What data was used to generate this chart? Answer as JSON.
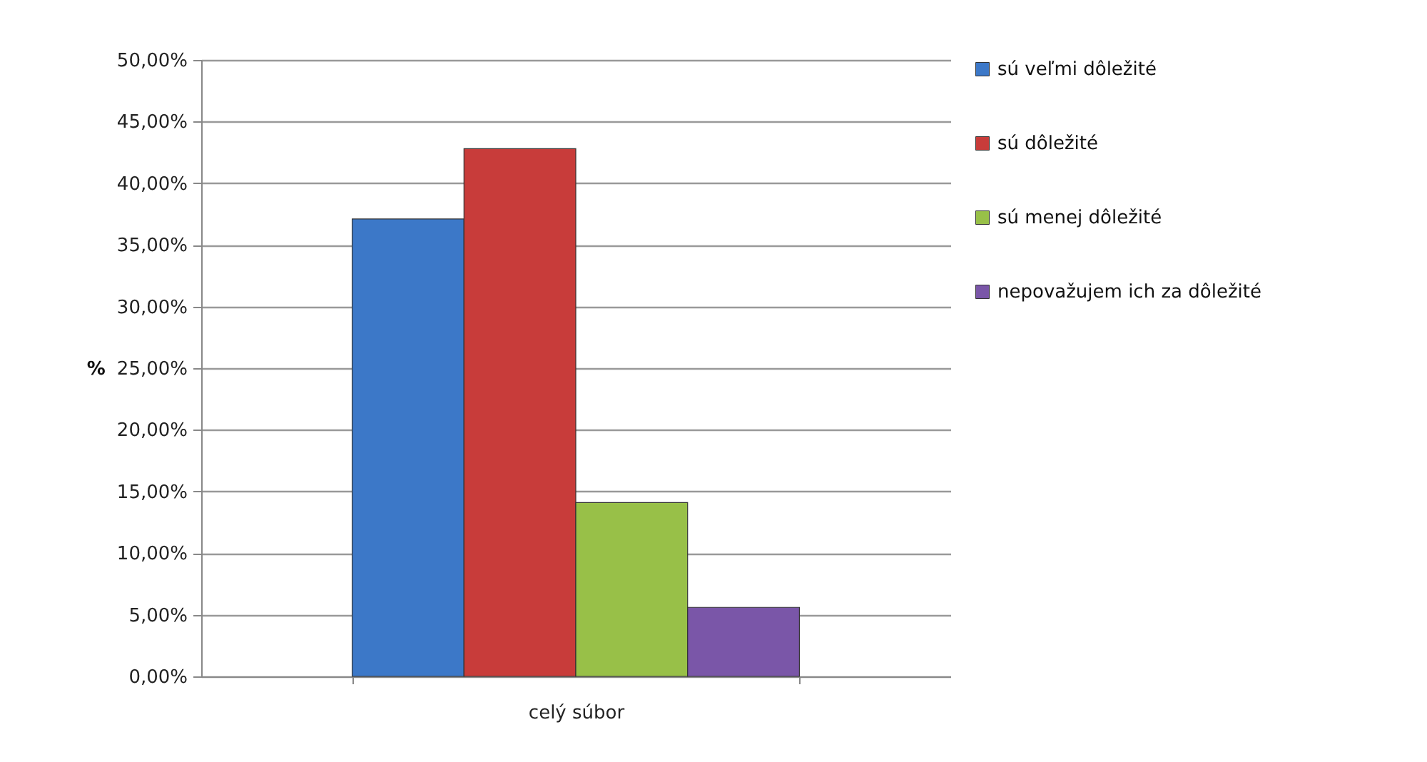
{
  "chart_data": {
    "type": "bar",
    "ylabel": "%",
    "categories": [
      "celý súbor"
    ],
    "series": [
      {
        "name": "sú veľmi dôležité",
        "color": "#3c78c8",
        "values": [
          37.1
        ]
      },
      {
        "name": "sú dôležité",
        "color": "#c83c3a",
        "values": [
          42.8
        ]
      },
      {
        "name": "sú menej dôležité",
        "color": "#98c048",
        "values": [
          14.1
        ]
      },
      {
        "name": "nepovažujem ich za dôležité",
        "color": "#7a56a8",
        "values": [
          5.6
        ]
      }
    ],
    "ylim": [
      0,
      50
    ],
    "yticks": [
      {
        "value": 0,
        "label": "0,00%"
      },
      {
        "value": 5,
        "label": "5,00%"
      },
      {
        "value": 10,
        "label": "10,00%"
      },
      {
        "value": 15,
        "label": "15,00%"
      },
      {
        "value": 20,
        "label": "20,00%"
      },
      {
        "value": 25,
        "label": "25,00%"
      },
      {
        "value": 30,
        "label": "30,00%"
      },
      {
        "value": 35,
        "label": "35,00%"
      },
      {
        "value": 40,
        "label": "40,00%"
      },
      {
        "value": 45,
        "label": "45,00%"
      },
      {
        "value": 50,
        "label": "50,00%"
      }
    ],
    "grid": "y",
    "legend": "right"
  }
}
